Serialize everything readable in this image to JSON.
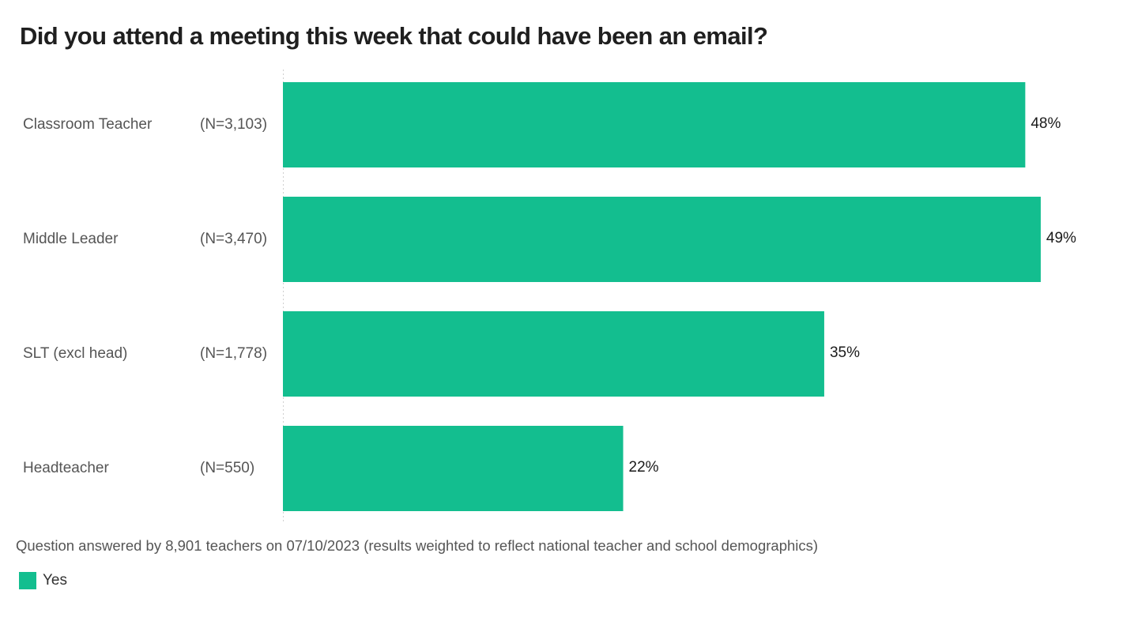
{
  "chart_data": {
    "type": "bar",
    "orientation": "horizontal",
    "title": "Did you attend a meeting this week that could have been an email?",
    "categories": [
      "Classroom Teacher",
      "Middle Leader",
      "SLT (excl head)",
      "Headteacher"
    ],
    "sample_sizes": [
      "(N=3,103)",
      "(N=3,470)",
      "(N=1,778)",
      "(N=550)"
    ],
    "series": [
      {
        "name": "Yes",
        "values": [
          48,
          49,
          35,
          22
        ],
        "value_labels": [
          "48%",
          "49%",
          "35%",
          "22%"
        ],
        "color": "#13be8f"
      }
    ],
    "xlim": [
      0,
      50
    ],
    "grid": false,
    "legend": "bottom-left",
    "footnote": "Question answered by 8,901 teachers on 07/10/2023 (results weighted to reflect national teacher and school demographics)"
  }
}
